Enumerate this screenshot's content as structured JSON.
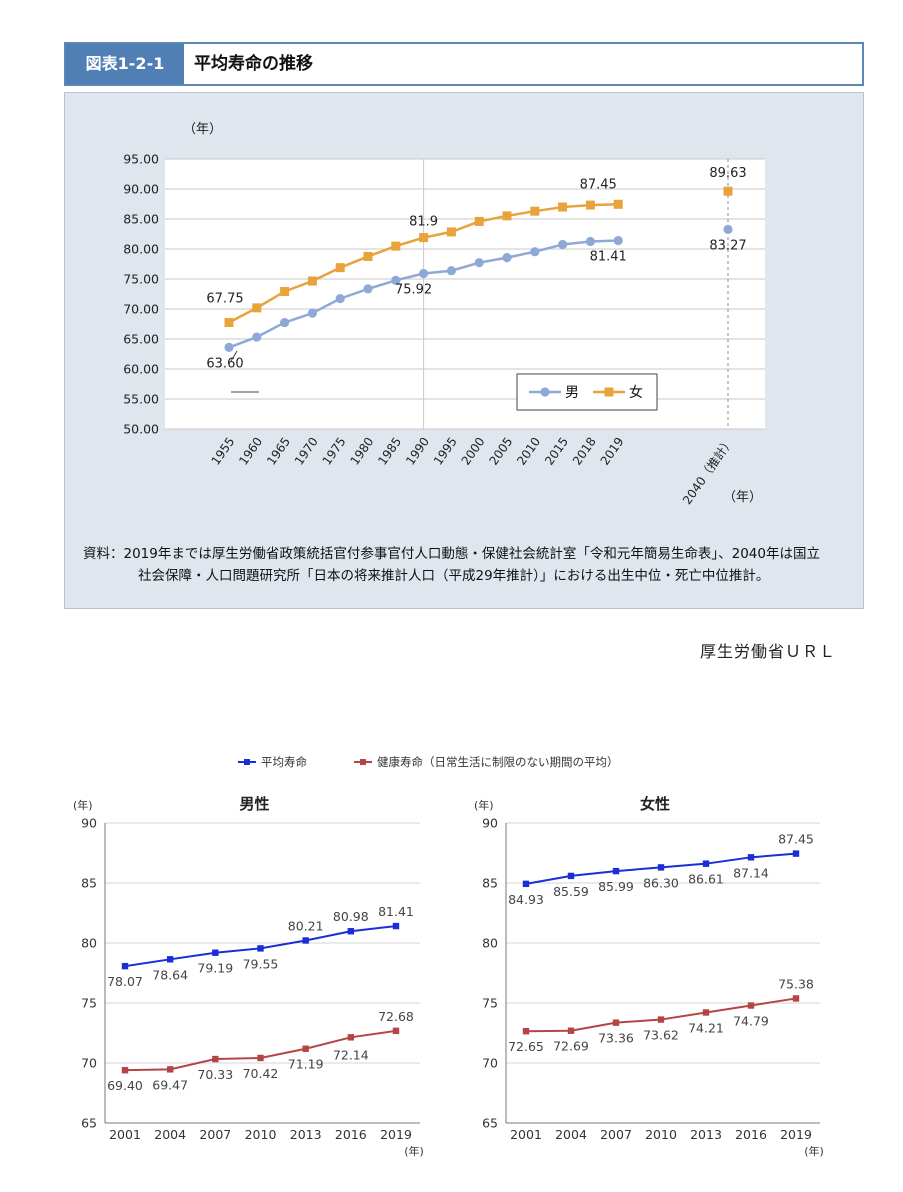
{
  "figure1": {
    "badge": "図表1-2-1",
    "title": "平均寿命の推移",
    "source_line1": "資料：2019年までは厚生労働省政策統括官付参事官付人口動態・保健社会統計室「令和元年簡易生命表」、2040年は国立",
    "source_line2": "社会保障・人口問題研究所「日本の将来推計人口（平成29年推計）」における出生中位・死亡中位推計。"
  },
  "url_note": "厚生労働省ＵＲＬ",
  "chart_data": [
    {
      "type": "line",
      "ylabel": "（年）",
      "xlabel": "（年）",
      "ylim": [
        50,
        95
      ],
      "yticks": [
        "95.00",
        "90.00",
        "85.00",
        "80.00",
        "75.00",
        "70.00",
        "65.00",
        "60.00",
        "55.00",
        "50.00"
      ],
      "categories": [
        "1955",
        "1960",
        "1965",
        "1970",
        "1975",
        "1980",
        "1985",
        "1990",
        "1995",
        "2000",
        "2005",
        "2010",
        "2015",
        "2018",
        "2019",
        "2040（推計）"
      ],
      "series": [
        {
          "name": "男",
          "color": "#8fa9d6",
          "values": [
            63.6,
            65.32,
            67.74,
            69.31,
            71.73,
            73.35,
            74.78,
            75.92,
            76.38,
            77.72,
            78.56,
            79.55,
            80.75,
            81.25,
            81.41,
            83.27
          ]
        },
        {
          "name": "女",
          "color": "#e8a33b",
          "values": [
            67.75,
            70.19,
            72.92,
            74.66,
            76.89,
            78.76,
            80.48,
            81.9,
            82.85,
            84.6,
            85.52,
            86.3,
            86.99,
            87.32,
            87.45,
            89.63
          ]
        }
      ],
      "annotations": [
        {
          "text": "67.75",
          "series": 1,
          "index": 0
        },
        {
          "text": "63.60",
          "series": 0,
          "index": 0
        },
        {
          "text": "81.9",
          "series": 1,
          "index": 7
        },
        {
          "text": "75.92",
          "series": 0,
          "index": 7
        },
        {
          "text": "87.45",
          "series": 1,
          "index": 14
        },
        {
          "text": "81.41",
          "series": 0,
          "index": 14
        },
        {
          "text": "89.63",
          "series": 1,
          "index": 15
        },
        {
          "text": "83.27",
          "series": 0,
          "index": 15
        }
      ],
      "legend": "bottom-right"
    },
    {
      "type": "line",
      "legend_items": [
        "平均寿命",
        "健康寿命（日常生活に制限のない期間の平均）"
      ],
      "colors": {
        "average": "#1a2ed8",
        "healthy": "#b54545"
      },
      "panels": [
        {
          "title": "男性",
          "ylabel": "(年)",
          "xlabel": "(年)",
          "ylim": [
            65,
            90
          ],
          "yticks": [
            "90",
            "85",
            "80",
            "75",
            "70",
            "65"
          ],
          "categories": [
            "2001",
            "2004",
            "2007",
            "2010",
            "2013",
            "2016",
            "2019"
          ],
          "average": [
            78.07,
            78.64,
            79.19,
            79.55,
            80.21,
            80.98,
            81.41
          ],
          "average_labels": [
            "78.07",
            "78.64",
            "79.19",
            "79.55",
            "80.21",
            "80.98",
            "81.41"
          ],
          "healthy": [
            69.4,
            69.47,
            70.33,
            70.42,
            71.19,
            72.14,
            72.68
          ],
          "healthy_labels": [
            "69.40",
            "69.47",
            "70.33",
            "70.42",
            "71.19",
            "72.14",
            "72.68"
          ]
        },
        {
          "title": "女性",
          "ylabel": "(年)",
          "xlabel": "(年)",
          "ylim": [
            65,
            90
          ],
          "yticks": [
            "90",
            "85",
            "80",
            "75",
            "70",
            "65"
          ],
          "categories": [
            "2001",
            "2004",
            "2007",
            "2010",
            "2013",
            "2016",
            "2019"
          ],
          "average": [
            84.93,
            85.59,
            85.99,
            86.3,
            86.61,
            87.14,
            87.45
          ],
          "average_labels": [
            "84.93",
            "85.59",
            "85.99",
            "86.30",
            "86.61",
            "87.14",
            "87.45"
          ],
          "healthy": [
            72.65,
            72.69,
            73.36,
            73.62,
            74.21,
            74.79,
            75.38
          ],
          "healthy_labels": [
            "72.65",
            "72.69",
            "73.36",
            "73.62",
            "74.21",
            "74.79",
            "75.38"
          ]
        }
      ]
    }
  ]
}
